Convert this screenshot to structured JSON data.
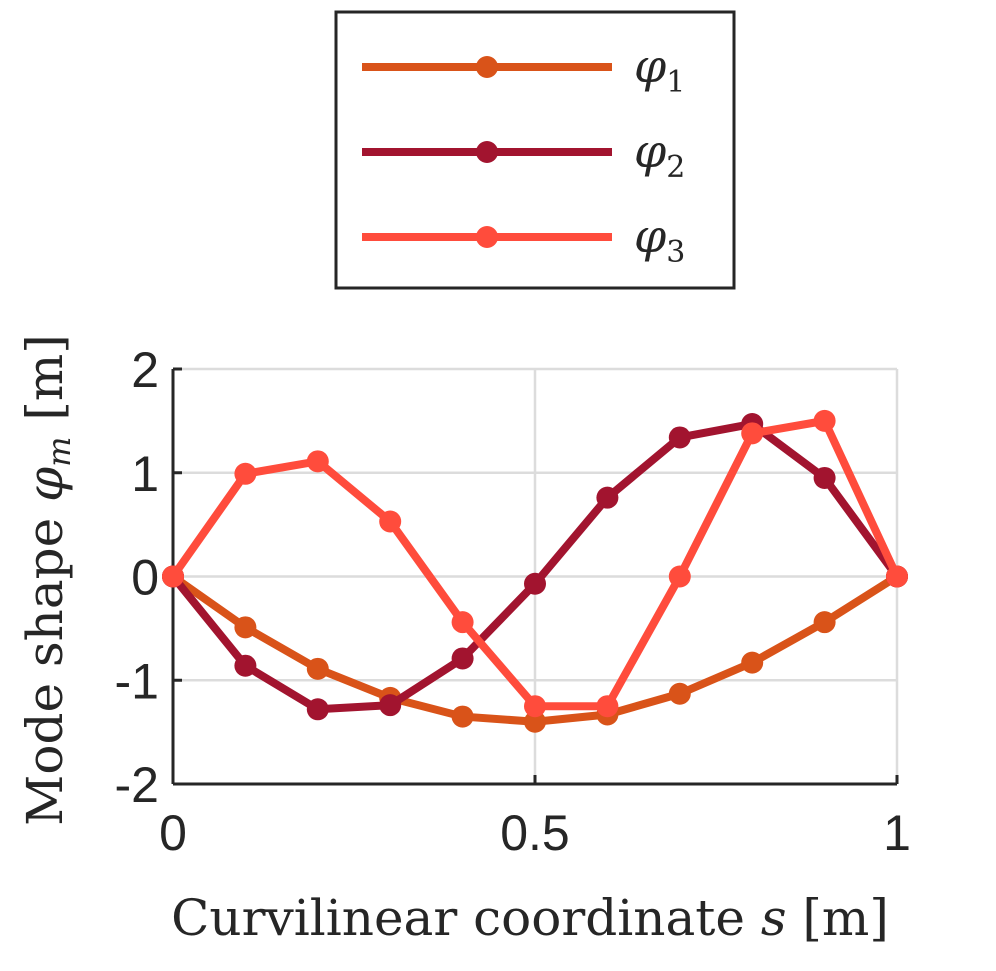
{
  "chart_data": {
    "type": "line",
    "xlabel": "Curvilinear coordinate s [m]",
    "ylabel": "Mode shape φm [m]",
    "xlim": [
      0,
      1
    ],
    "ylim": [
      -2,
      2
    ],
    "x_ticks": [
      "0",
      "0.5",
      "1"
    ],
    "y_ticks": [
      "2",
      "1",
      "0",
      "-1",
      "-2"
    ],
    "grid": true,
    "legend_position": "top-center, outside axes",
    "x": [
      0,
      0.1,
      0.2,
      0.3,
      0.4,
      0.5,
      0.6,
      0.7,
      0.8,
      0.9,
      1.0
    ],
    "series": [
      {
        "name": "φ1",
        "color": "#D95319",
        "values": [
          0,
          -0.49,
          -0.89,
          -1.17,
          -1.35,
          -1.4,
          -1.33,
          -1.13,
          -0.83,
          -0.44,
          0
        ]
      },
      {
        "name": "φ2",
        "color": "#A2142F",
        "values": [
          0,
          -0.86,
          -1.28,
          -1.24,
          -0.79,
          -0.07,
          0.76,
          1.34,
          1.47,
          0.95,
          0
        ]
      },
      {
        "name": "φ3",
        "color": "#FF4C3C",
        "values": [
          0,
          0.99,
          1.11,
          0.53,
          -0.44,
          -1.25,
          -1.25,
          0.0,
          1.38,
          1.5,
          0
        ]
      }
    ]
  }
}
